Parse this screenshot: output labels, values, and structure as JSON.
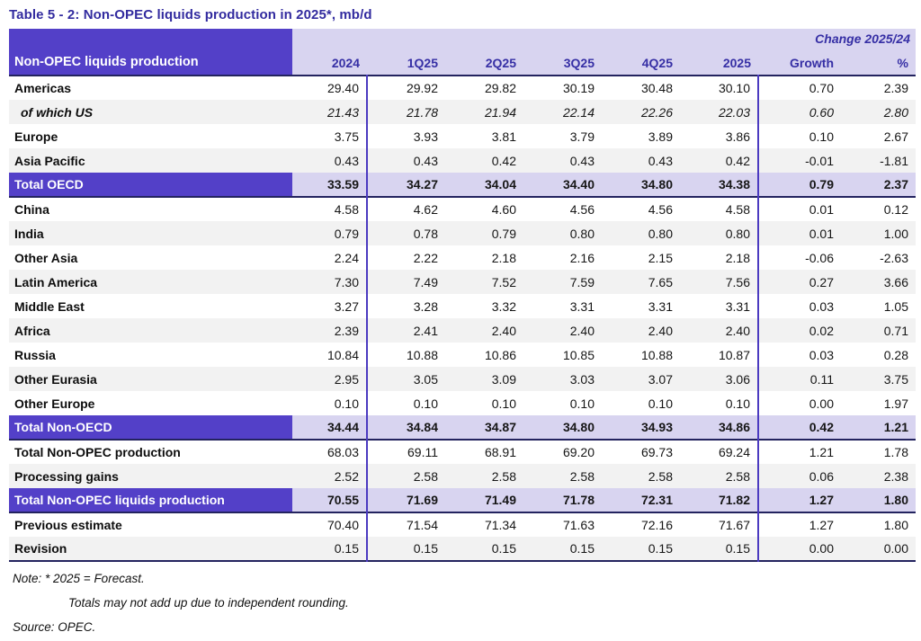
{
  "title": "Table 5 - 2: Non-OPEC liquids production in 2025*, mb/d",
  "table": {
    "label_header": "Non-OPEC liquids production",
    "change_header": "Change 2025/24",
    "columns": [
      "2024",
      "1Q25",
      "2Q25",
      "3Q25",
      "4Q25",
      "2025",
      "Growth",
      "%"
    ],
    "rows": [
      {
        "label": "Americas",
        "style": "normal",
        "shade": "white",
        "values": [
          "29.40",
          "29.92",
          "29.82",
          "30.19",
          "30.48",
          "30.10",
          "0.70",
          "2.39"
        ]
      },
      {
        "label": "of which US",
        "style": "sub",
        "shade": "gray",
        "values": [
          "21.43",
          "21.78",
          "21.94",
          "22.14",
          "22.26",
          "22.03",
          "0.60",
          "2.80"
        ]
      },
      {
        "label": "Europe",
        "style": "normal",
        "shade": "white",
        "values": [
          "3.75",
          "3.93",
          "3.81",
          "3.79",
          "3.89",
          "3.86",
          "0.10",
          "2.67"
        ]
      },
      {
        "label": "Asia Pacific",
        "style": "normal",
        "shade": "gray",
        "values": [
          "0.43",
          "0.43",
          "0.42",
          "0.43",
          "0.43",
          "0.42",
          "-0.01",
          "-1.81"
        ]
      },
      {
        "label": "Total OECD",
        "style": "total",
        "shade": "lavender",
        "values": [
          "33.59",
          "34.27",
          "34.04",
          "34.40",
          "34.80",
          "34.38",
          "0.79",
          "2.37"
        ]
      },
      {
        "label": "China",
        "style": "normal",
        "shade": "white",
        "values": [
          "4.58",
          "4.62",
          "4.60",
          "4.56",
          "4.56",
          "4.58",
          "0.01",
          "0.12"
        ]
      },
      {
        "label": "India",
        "style": "normal",
        "shade": "gray",
        "values": [
          "0.79",
          "0.78",
          "0.79",
          "0.80",
          "0.80",
          "0.80",
          "0.01",
          "1.00"
        ]
      },
      {
        "label": "Other Asia",
        "style": "normal",
        "shade": "white",
        "values": [
          "2.24",
          "2.22",
          "2.18",
          "2.16",
          "2.15",
          "2.18",
          "-0.06",
          "-2.63"
        ]
      },
      {
        "label": "Latin America",
        "style": "normal",
        "shade": "gray",
        "values": [
          "7.30",
          "7.49",
          "7.52",
          "7.59",
          "7.65",
          "7.56",
          "0.27",
          "3.66"
        ]
      },
      {
        "label": "Middle East",
        "style": "normal",
        "shade": "white",
        "values": [
          "3.27",
          "3.28",
          "3.32",
          "3.31",
          "3.31",
          "3.31",
          "0.03",
          "1.05"
        ]
      },
      {
        "label": "Africa",
        "style": "normal",
        "shade": "gray",
        "values": [
          "2.39",
          "2.41",
          "2.40",
          "2.40",
          "2.40",
          "2.40",
          "0.02",
          "0.71"
        ]
      },
      {
        "label": "Russia",
        "style": "normal",
        "shade": "white",
        "values": [
          "10.84",
          "10.88",
          "10.86",
          "10.85",
          "10.88",
          "10.87",
          "0.03",
          "0.28"
        ]
      },
      {
        "label": "Other Eurasia",
        "style": "normal",
        "shade": "gray",
        "values": [
          "2.95",
          "3.05",
          "3.09",
          "3.03",
          "3.07",
          "3.06",
          "0.11",
          "3.75"
        ]
      },
      {
        "label": "Other Europe",
        "style": "normal",
        "shade": "white",
        "values": [
          "0.10",
          "0.10",
          "0.10",
          "0.10",
          "0.10",
          "0.10",
          "0.00",
          "1.97"
        ]
      },
      {
        "label": "Total Non-OECD",
        "style": "total",
        "shade": "lavender",
        "values": [
          "34.44",
          "34.84",
          "34.87",
          "34.80",
          "34.93",
          "34.86",
          "0.42",
          "1.21"
        ]
      },
      {
        "label": "Total Non-OPEC production",
        "style": "normal",
        "shade": "white",
        "values": [
          "68.03",
          "69.11",
          "68.91",
          "69.20",
          "69.73",
          "69.24",
          "1.21",
          "1.78"
        ]
      },
      {
        "label": "Processing gains",
        "style": "normal",
        "shade": "gray",
        "values": [
          "2.52",
          "2.58",
          "2.58",
          "2.58",
          "2.58",
          "2.58",
          "0.06",
          "2.38"
        ]
      },
      {
        "label": "Total Non-OPEC liquids production",
        "style": "total",
        "shade": "lavender",
        "values": [
          "70.55",
          "71.69",
          "71.49",
          "71.78",
          "72.31",
          "71.82",
          "1.27",
          "1.80"
        ]
      },
      {
        "label": "Previous estimate",
        "style": "normal",
        "shade": "white",
        "values": [
          "70.40",
          "71.54",
          "71.34",
          "71.63",
          "72.16",
          "71.67",
          "1.27",
          "1.80"
        ]
      },
      {
        "label": "Revision",
        "style": "normal",
        "shade": "gray",
        "values": [
          "0.15",
          "0.15",
          "0.15",
          "0.15",
          "0.15",
          "0.15",
          "0.00",
          "0.00"
        ]
      }
    ]
  },
  "notes": {
    "note1": "Note: * 2025 = Forecast.",
    "note2": "Totals may not add up due to independent rounding.",
    "source": "Source: OPEC."
  },
  "colors": {
    "header_purple": "#5340c8",
    "header_lavender": "#d8d4f0",
    "header_text_indigo": "#362fa5",
    "title_indigo": "#322b9f",
    "stripe_gray": "#f2f2f2",
    "divider_purple": "#4b3ac0",
    "rule_dark": "#23235f"
  }
}
